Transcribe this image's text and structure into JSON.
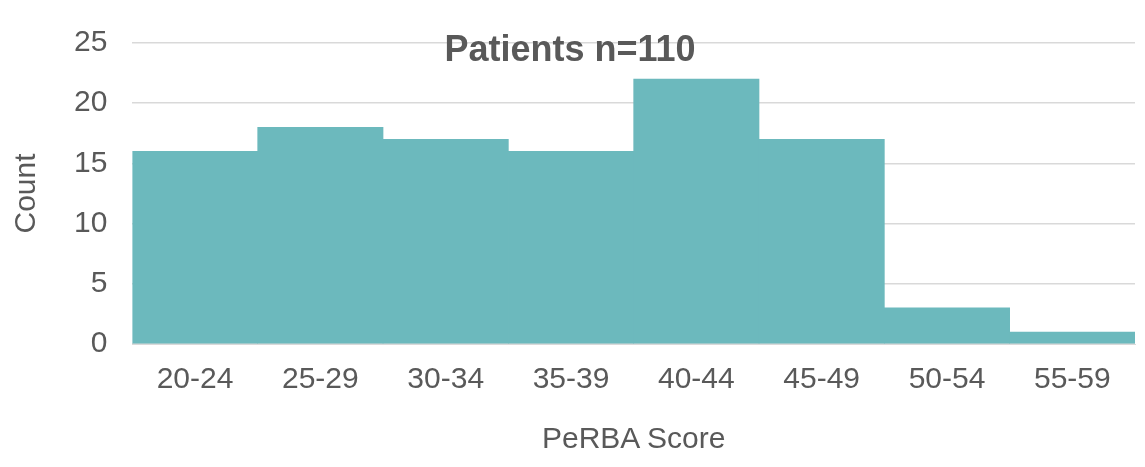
{
  "chart_data": {
    "type": "bar",
    "title": "Patients n=110",
    "xlabel": "PeRBA Score",
    "ylabel": "Count",
    "categories": [
      "20-24",
      "25-29",
      "30-34",
      "35-39",
      "40-44",
      "45-49",
      "50-54",
      "55-59"
    ],
    "values": [
      16,
      18,
      17,
      16,
      22,
      17,
      3,
      1
    ],
    "color": "#6cb9bd",
    "ylim": [
      0,
      25
    ],
    "yticks": [
      0,
      5,
      10,
      15,
      20,
      25
    ],
    "grid": "y",
    "legend": false
  }
}
